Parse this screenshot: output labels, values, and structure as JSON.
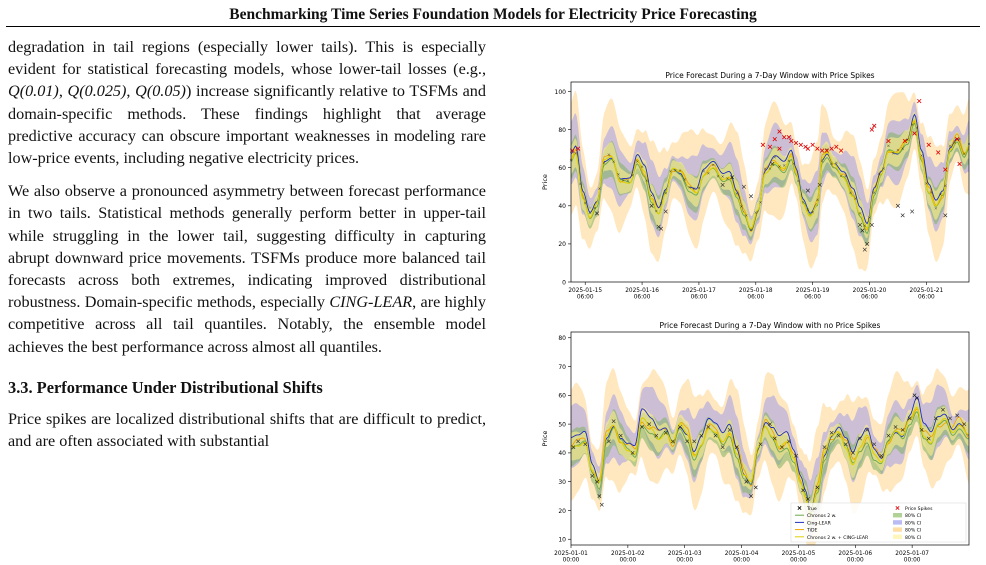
{
  "header": {
    "running_title": "Benchmarking Time Series Foundation Models for Electricity Price Forecasting"
  },
  "left_column": {
    "para1": {
      "before": "degradation in tail regions (especially lower tails). This is especially evident for statistical forecasting models, whose lower-tail losses (e.g., ",
      "q1": "Q(0.01)",
      "sep1": ", ",
      "q2": "Q(0.025)",
      "sep2": ", ",
      "q3": "Q(0.05)",
      "after": ") increase significantly relative to TSFMs and domain-specific methods. These findings highlight that average predictive accuracy can obscure important weaknesses in modeling rare low-price events, including negative electricity prices."
    },
    "para2": {
      "before": "We also observe a pronounced asymmetry between forecast performance in two tails. Statistical methods generally perform better in upper-tail while struggling in the lower tail, suggesting difficulty in capturing abrupt downward price movements. TSFMs produce more balanced tail forecasts across both extremes, indicating improved distributional robustness. Domain-specific methods, especially ",
      "emph": "CING-LEAR",
      "after": ", are highly competitive across all tail quantiles. Notably, the ensemble model achieves the best performance across almost all quantiles."
    },
    "section_heading": "3.3. Performance Under Distributional Shifts",
    "para3": "Price spikes are localized distributional shifts that are difficult to predict, and are often associated with substantial"
  },
  "chart_data": [
    {
      "type": "line",
      "title": "Price Forecast During a 7-Day Window with Price Spikes",
      "ylabel": "Price",
      "xlabel": "",
      "ylim": [
        0,
        105
      ],
      "yticks": [
        0,
        20,
        40,
        60,
        80,
        100
      ],
      "x_range_hours": [
        0,
        168
      ],
      "xticks": [
        {
          "d": "2025-01-15",
          "t": "06:00",
          "h": 6
        },
        {
          "d": "2025-01-16",
          "t": "06:00",
          "h": 30
        },
        {
          "d": "2025-01-17",
          "t": "06:00",
          "h": 54
        },
        {
          "d": "2025-01-18",
          "t": "06:00",
          "h": 78
        },
        {
          "d": "2025-01-19",
          "t": "06:00",
          "h": 102
        },
        {
          "d": "2025-01-20",
          "t": "06:00",
          "h": 126
        },
        {
          "d": "2025-01-21",
          "t": "06:00",
          "h": 150
        }
      ],
      "knots": [
        [
          0,
          64
        ],
        [
          2,
          68
        ],
        [
          5,
          45
        ],
        [
          8,
          35
        ],
        [
          11,
          42
        ],
        [
          14,
          64
        ],
        [
          17,
          66
        ],
        [
          21,
          54
        ],
        [
          25,
          53
        ],
        [
          28,
          64
        ],
        [
          31,
          58
        ],
        [
          34,
          44
        ],
        [
          37,
          37
        ],
        [
          40,
          48
        ],
        [
          43,
          60
        ],
        [
          46,
          58
        ],
        [
          50,
          50
        ],
        [
          53,
          48
        ],
        [
          56,
          57
        ],
        [
          60,
          60
        ],
        [
          64,
          54
        ],
        [
          67,
          56
        ],
        [
          70,
          47
        ],
        [
          73,
          37
        ],
        [
          76,
          28
        ],
        [
          79,
          38
        ],
        [
          82,
          58
        ],
        [
          86,
          64
        ],
        [
          90,
          60
        ],
        [
          93,
          66
        ],
        [
          95,
          57
        ],
        [
          98,
          42
        ],
        [
          101,
          36
        ],
        [
          104,
          42
        ],
        [
          106,
          65
        ],
        [
          108,
          68
        ],
        [
          111,
          62
        ],
        [
          115,
          56
        ],
        [
          119,
          46
        ],
        [
          122,
          36
        ],
        [
          125,
          28
        ],
        [
          128,
          48
        ],
        [
          131,
          58
        ],
        [
          134,
          70
        ],
        [
          138,
          68
        ],
        [
          142,
          74
        ],
        [
          145,
          86
        ],
        [
          148,
          66
        ],
        [
          151,
          48
        ],
        [
          154,
          40
        ],
        [
          157,
          46
        ],
        [
          160,
          70
        ],
        [
          163,
          76
        ],
        [
          166,
          68
        ],
        [
          168,
          72
        ]
      ],
      "band_half_width": 20,
      "spike_points": [
        [
          0.5,
          69
        ],
        [
          3,
          70
        ],
        [
          81,
          72
        ],
        [
          84,
          71
        ],
        [
          86,
          75
        ],
        [
          88,
          79
        ],
        [
          88,
          70
        ],
        [
          90,
          76
        ],
        [
          92,
          76
        ],
        [
          93,
          74
        ],
        [
          95,
          73
        ],
        [
          97,
          72
        ],
        [
          99,
          71
        ],
        [
          100,
          70
        ],
        [
          102,
          72
        ],
        [
          104,
          70
        ],
        [
          106,
          69
        ],
        [
          108,
          69
        ],
        [
          110,
          70
        ],
        [
          112,
          71
        ],
        [
          114,
          69
        ],
        [
          127,
          80
        ],
        [
          128,
          82
        ],
        [
          134,
          74
        ],
        [
          141,
          74
        ],
        [
          145,
          78
        ],
        [
          147,
          95
        ],
        [
          151,
          72
        ],
        [
          155,
          68
        ],
        [
          158,
          59
        ],
        [
          163,
          75
        ],
        [
          164,
          62
        ]
      ],
      "true_low_points": [
        [
          11,
          36
        ],
        [
          34,
          40
        ],
        [
          37,
          29
        ],
        [
          38,
          28
        ],
        [
          40,
          37
        ],
        [
          64,
          51
        ],
        [
          68,
          55
        ],
        [
          73,
          50
        ],
        [
          76,
          45
        ],
        [
          85,
          62
        ],
        [
          100,
          48
        ],
        [
          105,
          51
        ],
        [
          122,
          30
        ],
        [
          123,
          27
        ],
        [
          124,
          17
        ],
        [
          125,
          20
        ],
        [
          127,
          30
        ],
        [
          138,
          40
        ],
        [
          140,
          35
        ],
        [
          144,
          37
        ],
        [
          158,
          35
        ]
      ]
    },
    {
      "type": "line",
      "title": "Price Forecast During a 7-Day Window with no Price Spikes",
      "ylabel": "Price",
      "xlabel": "",
      "ylim": [
        8,
        82
      ],
      "yticks": [
        10,
        20,
        30,
        40,
        50,
        60,
        70,
        80
      ],
      "x_range_hours": [
        0,
        168
      ],
      "xticks": [
        {
          "d": "2025-01-01",
          "t": "00:00",
          "h": 0
        },
        {
          "d": "2025-01-02",
          "t": "00:00",
          "h": 24
        },
        {
          "d": "2025-01-03",
          "t": "00:00",
          "h": 48
        },
        {
          "d": "2025-01-04",
          "t": "00:00",
          "h": 72
        },
        {
          "d": "2025-01-05",
          "t": "00:00",
          "h": 96
        },
        {
          "d": "2025-01-06",
          "t": "00:00",
          "h": 120
        },
        {
          "d": "2025-01-07",
          "t": "00:00",
          "h": 144
        }
      ],
      "knots": [
        [
          0,
          42
        ],
        [
          3,
          43
        ],
        [
          6,
          45
        ],
        [
          9,
          35
        ],
        [
          12,
          30
        ],
        [
          15,
          46
        ],
        [
          18,
          50
        ],
        [
          21,
          45
        ],
        [
          24,
          42
        ],
        [
          27,
          40
        ],
        [
          30,
          52
        ],
        [
          34,
          49
        ],
        [
          37,
          46
        ],
        [
          40,
          48
        ],
        [
          43,
          44
        ],
        [
          46,
          50
        ],
        [
          49,
          47
        ],
        [
          52,
          40
        ],
        [
          55,
          44
        ],
        [
          58,
          49
        ],
        [
          61,
          47
        ],
        [
          64,
          44
        ],
        [
          67,
          48
        ],
        [
          70,
          41
        ],
        [
          73,
          33
        ],
        [
          76,
          30
        ],
        [
          79,
          42
        ],
        [
          82,
          50
        ],
        [
          85,
          47
        ],
        [
          88,
          43
        ],
        [
          91,
          44
        ],
        [
          94,
          38
        ],
        [
          97,
          30
        ],
        [
          99,
          26
        ],
        [
          101,
          20
        ],
        [
          104,
          28
        ],
        [
          107,
          40
        ],
        [
          110,
          46
        ],
        [
          113,
          48
        ],
        [
          116,
          43
        ],
        [
          119,
          37
        ],
        [
          122,
          42
        ],
        [
          125,
          46
        ],
        [
          128,
          40
        ],
        [
          131,
          38
        ],
        [
          134,
          45
        ],
        [
          137,
          48
        ],
        [
          140,
          46
        ],
        [
          143,
          52
        ],
        [
          146,
          57
        ],
        [
          149,
          47
        ],
        [
          152,
          44
        ],
        [
          155,
          50
        ],
        [
          158,
          52
        ],
        [
          161,
          48
        ],
        [
          164,
          51
        ],
        [
          168,
          47
        ]
      ],
      "band_half_width": 13,
      "true_points": [
        [
          1,
          42
        ],
        [
          3,
          44
        ],
        [
          6,
          43
        ],
        [
          9,
          32
        ],
        [
          11,
          30
        ],
        [
          12,
          25
        ],
        [
          13,
          22
        ],
        [
          16,
          44
        ],
        [
          18,
          51
        ],
        [
          21,
          46
        ],
        [
          26,
          40
        ],
        [
          30,
          49
        ],
        [
          33,
          50
        ],
        [
          36,
          46
        ],
        [
          40,
          47
        ],
        [
          43,
          44
        ],
        [
          46,
          49
        ],
        [
          49,
          44
        ],
        [
          52,
          44
        ],
        [
          55,
          46
        ],
        [
          58,
          49
        ],
        [
          61,
          46
        ],
        [
          64,
          42
        ],
        [
          67,
          48
        ],
        [
          70,
          42
        ],
        [
          74,
          30
        ],
        [
          76,
          25
        ],
        [
          78,
          28
        ],
        [
          80,
          43
        ],
        [
          84,
          50
        ],
        [
          86,
          45
        ],
        [
          89,
          42
        ],
        [
          92,
          44
        ],
        [
          95,
          39
        ],
        [
          98,
          27
        ],
        [
          100,
          24
        ],
        [
          102,
          20
        ],
        [
          104,
          28
        ],
        [
          107,
          42
        ],
        [
          110,
          47
        ],
        [
          113,
          46
        ],
        [
          116,
          43
        ],
        [
          119,
          40
        ],
        [
          122,
          45
        ],
        [
          125,
          48
        ],
        [
          128,
          43
        ],
        [
          131,
          39
        ],
        [
          134,
          46
        ],
        [
          137,
          49
        ],
        [
          140,
          48
        ],
        [
          143,
          52
        ],
        [
          145,
          60
        ],
        [
          146,
          59
        ],
        [
          148,
          48
        ],
        [
          151,
          45
        ],
        [
          154,
          52
        ],
        [
          157,
          55
        ],
        [
          160,
          52
        ],
        [
          163,
          53
        ],
        [
          166,
          50
        ]
      ],
      "legend": [
        {
          "label": "True",
          "kind": "marker-x",
          "color": "#000000"
        },
        {
          "label": "Chronos 2 w.",
          "kind": "line",
          "color": "#6aa84f"
        },
        {
          "label": "Cing-LEAR",
          "kind": "line",
          "color": "#1f2fbf"
        },
        {
          "label": "TiDE",
          "kind": "line",
          "color": "#f0a500"
        },
        {
          "label": "Chronos 2 w. + CING-LEAR",
          "kind": "line",
          "color": "#e0d000"
        },
        {
          "label": "Price Spikes",
          "kind": "marker-x",
          "color": "#e00000"
        },
        {
          "label": "80% CI",
          "kind": "patch",
          "color": "#8fbf6a"
        },
        {
          "label": "80% CI",
          "kind": "patch",
          "color": "#9c9cf0"
        },
        {
          "label": "80% CI",
          "kind": "patch",
          "color": "#ffd080"
        },
        {
          "label": "80% CI",
          "kind": "patch",
          "color": "#fff2a0"
        }
      ],
      "legend_placement": "lower-right"
    }
  ],
  "colors": {
    "chronos": "#6aa84f",
    "cinglear": "#1f2fbf",
    "tide": "#f0a500",
    "ensemble": "#e0d000",
    "band_tide": "#ffcc70",
    "band_cing": "#8f8ff0",
    "band_chronos": "#7fb060",
    "band_ens": "#fff08a",
    "true": "#222222",
    "spike": "#e00000"
  }
}
